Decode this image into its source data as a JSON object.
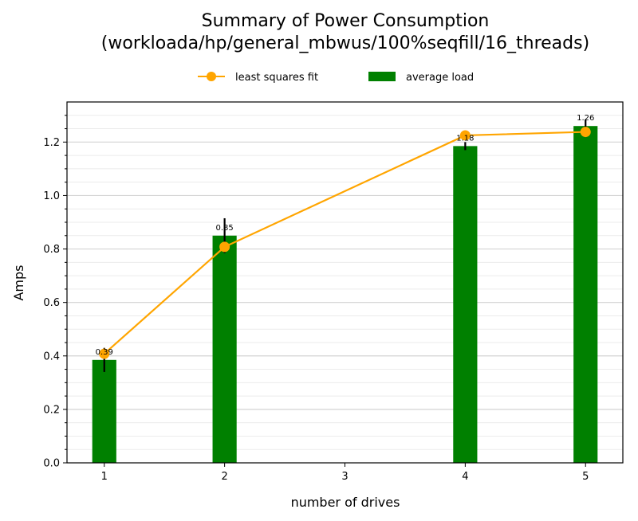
{
  "chart_data": {
    "type": "bar",
    "title": "Summary of Power Consumption\n(workloada/hp/general_mbwus/100%seqfill/16_threads)",
    "xlabel": "number of drives",
    "ylabel": "Amps",
    "xlim": [
      0.69,
      5.31
    ],
    "ylim": [
      0.0,
      1.35
    ],
    "xticks": [
      1,
      2,
      3,
      4,
      5
    ],
    "yticks": [
      0.0,
      0.2,
      0.4,
      0.6,
      0.8,
      1.0,
      1.2
    ],
    "ytick_labels": [
      "0.0",
      "0.2",
      "0.4",
      "0.6",
      "0.8",
      "1.0",
      "1.2"
    ],
    "grid": {
      "major": true,
      "minor": true,
      "axis": "y"
    },
    "legend": {
      "placement": "top-center"
    },
    "bars": {
      "name": "average load",
      "color": "#008000",
      "x": [
        1,
        2,
        4,
        5
      ],
      "values": [
        0.385,
        0.85,
        1.185,
        1.26
      ],
      "labels": [
        "0.39",
        "0.85",
        "1.18",
        "1.26"
      ],
      "error": [
        0.045,
        0.065,
        0.015,
        0.025
      ]
    },
    "fit": {
      "name": "least squares fit",
      "color": "#FFA500",
      "x": [
        1,
        2,
        4,
        5
      ],
      "values": [
        0.408,
        0.808,
        1.225,
        1.238
      ]
    }
  }
}
